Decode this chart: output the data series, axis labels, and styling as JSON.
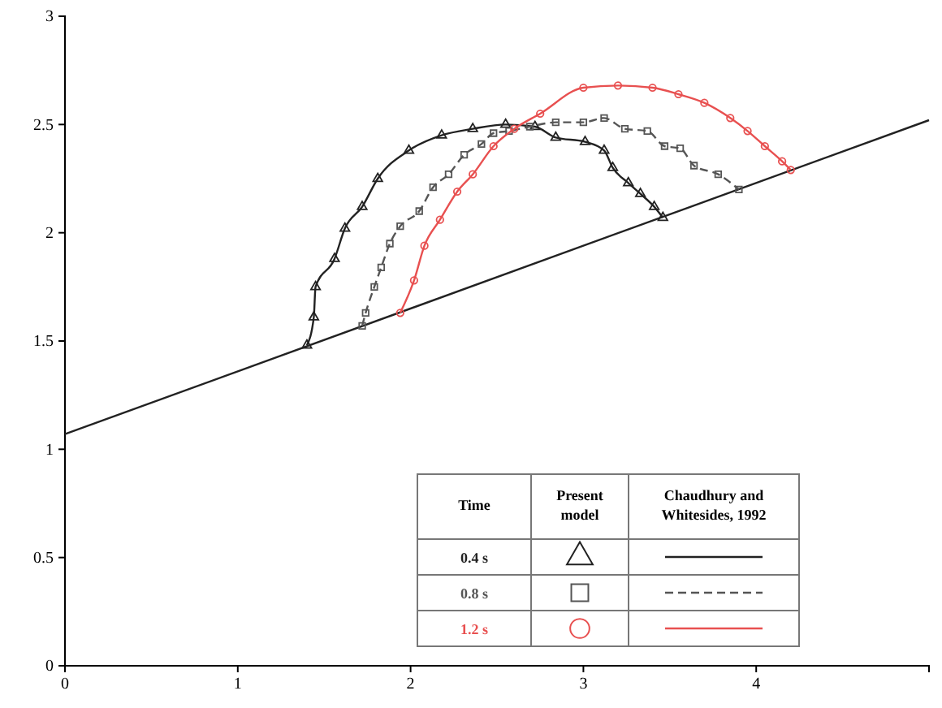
{
  "chart_data": {
    "type": "line",
    "xlim": [
      0,
      5
    ],
    "ylim": [
      0,
      3
    ],
    "xticks": [
      0,
      1,
      2,
      3,
      4
    ],
    "yticks": [
      0,
      0.5,
      1,
      1.5,
      2,
      2.5,
      3
    ],
    "grid": false,
    "legend": "bottom right",
    "annotations": [
      "Time",
      "Present model",
      "Chaudhury and Whitesides, 1992"
    ],
    "series": [
      {
        "color": "#222222",
        "marker": "none",
        "line_style": "solid",
        "x": [
          0,
          5
        ],
        "values": [
          1.07,
          2.52
        ]
      },
      {
        "name": "0.4 s",
        "color": "#222222",
        "marker": "triangle",
        "line_style": "solid",
        "x": [
          1.4,
          1.44,
          1.45,
          1.56,
          1.62,
          1.72,
          1.81,
          1.99,
          2.18,
          2.36,
          2.55,
          2.72,
          2.84,
          3.01,
          3.12,
          3.17,
          3.26,
          3.33,
          3.41,
          3.46
        ],
        "values": [
          1.48,
          1.61,
          1.75,
          1.88,
          2.02,
          2.12,
          2.25,
          2.38,
          2.45,
          2.48,
          2.5,
          2.49,
          2.44,
          2.42,
          2.38,
          2.3,
          2.23,
          2.18,
          2.12,
          2.07
        ]
      },
      {
        "name": "0.8 s",
        "color": "#555555",
        "marker": "square",
        "line_style": "dashed",
        "x": [
          1.72,
          1.74,
          1.79,
          1.83,
          1.88,
          1.94,
          2.05,
          2.13,
          2.22,
          2.31,
          2.41,
          2.48,
          2.57,
          2.69,
          2.84,
          3.0,
          3.12,
          3.24,
          3.37,
          3.47,
          3.56,
          3.64,
          3.78,
          3.9
        ],
        "values": [
          1.57,
          1.63,
          1.75,
          1.84,
          1.95,
          2.03,
          2.1,
          2.21,
          2.27,
          2.36,
          2.41,
          2.46,
          2.47,
          2.49,
          2.51,
          2.51,
          2.53,
          2.48,
          2.47,
          2.4,
          2.39,
          2.31,
          2.27,
          2.2
        ]
      },
      {
        "name": "1.2 s",
        "color": "#e85050",
        "marker": "circle",
        "line_style": "solid",
        "x": [
          1.94,
          2.02,
          2.08,
          2.17,
          2.27,
          2.36,
          2.48,
          2.6,
          2.75,
          3.0,
          3.2,
          3.4,
          3.55,
          3.7,
          3.85,
          3.95,
          4.05,
          4.15,
          4.2
        ],
        "values": [
          1.63,
          1.78,
          1.94,
          2.06,
          2.19,
          2.27,
          2.4,
          2.48,
          2.55,
          2.67,
          2.68,
          2.67,
          2.64,
          2.6,
          2.53,
          2.47,
          2.4,
          2.33,
          2.29
        ]
      }
    ]
  }
}
